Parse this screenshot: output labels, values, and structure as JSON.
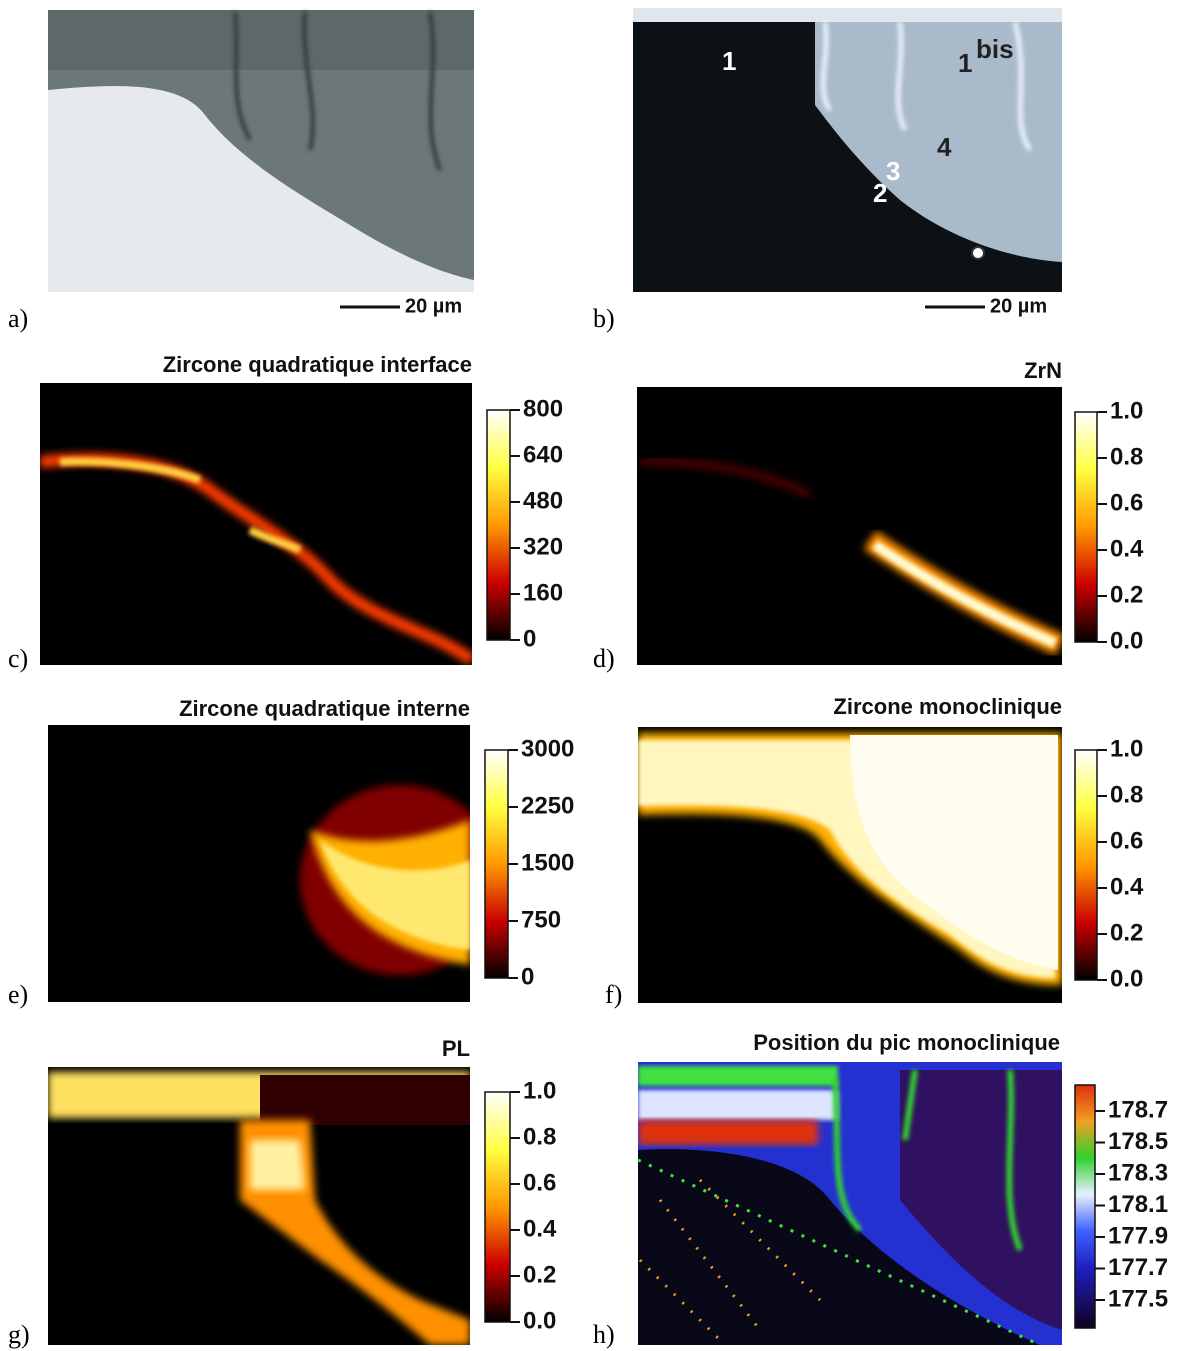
{
  "panels": [
    {
      "letter": "a)",
      "scale_bar": "20 µm"
    },
    {
      "letter": "b)",
      "scale_bar": "20 µm",
      "annotations": [
        "1",
        "1",
        "bis",
        "4",
        "2",
        "3"
      ]
    },
    {
      "letter": "c)",
      "title": "Zircone quadratique interface",
      "colorbar_ticks": [
        "800",
        "640",
        "480",
        "320",
        "160",
        "0"
      ]
    },
    {
      "letter": "d)",
      "title": "ZrN",
      "colorbar_ticks": [
        "1.0",
        "0.8",
        "0.6",
        "0.4",
        "0.2",
        "0.0"
      ]
    },
    {
      "letter": "e)",
      "title": "Zircone quadratique interne",
      "colorbar_ticks": [
        "3000",
        "2250",
        "1500",
        "750",
        "0"
      ]
    },
    {
      "letter": "f)",
      "title": "Zircone monoclinique",
      "colorbar_ticks": [
        "1.0",
        "0.8",
        "0.6",
        "0.4",
        "0.2",
        "0.0"
      ]
    },
    {
      "letter": "g)",
      "title": "PL",
      "colorbar_ticks": [
        "1.0",
        "0.8",
        "0.6",
        "0.4",
        "0.2",
        "0.0"
      ]
    },
    {
      "letter": "h)",
      "title": "Position du pic monoclinique",
      "colorbar_ticks": [
        "178.7",
        "178.5",
        "178.3",
        "178.1",
        "177.9",
        "177.7",
        "177.5"
      ]
    }
  ]
}
